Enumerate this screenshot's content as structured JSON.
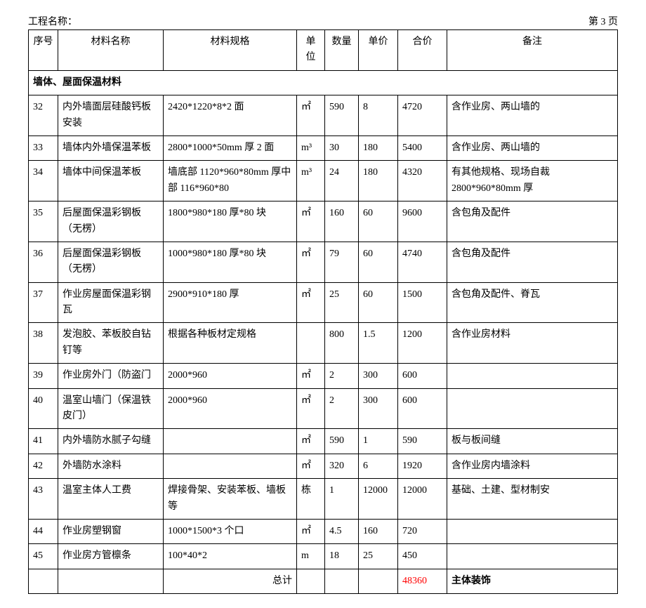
{
  "header": {
    "project_label": "工程名称：",
    "page_label": "第 3 页"
  },
  "table": {
    "columns": [
      "序号",
      "材料名称",
      "材料规格",
      "单位",
      "数量",
      "单价",
      "合价",
      "备注"
    ],
    "section_title": "墙体、屋面保温材料",
    "rows": [
      {
        "seq": "32",
        "name": "内外墙面层硅酸钙板安装",
        "spec": "2420*1220*8*2 面",
        "unit": "㎡",
        "qty": "590",
        "price": "8",
        "total": "4720",
        "note": "含作业房、两山墙的"
      },
      {
        "seq": "33",
        "name": "墙体内外墙保温苯板",
        "spec": "2800*1000*50mm 厚 2 面",
        "unit": "m³",
        "qty": "30",
        "price": "180",
        "total": "5400",
        "note": "含作业房、两山墙的"
      },
      {
        "seq": "34",
        "name": "墙体中间保温苯板",
        "spec": "墙底部 1120*960*80mm 厚中部 116*960*80",
        "unit": "m³",
        "qty": "24",
        "price": "180",
        "total": "4320",
        "note": "有其他规格、现场自裁2800*960*80mm 厚"
      },
      {
        "seq": "35",
        "name": "后屋面保温彩钢板（无楞）",
        "spec": "1800*980*180 厚*80 块",
        "unit": "㎡",
        "qty": "160",
        "price": "60",
        "total": "9600",
        "note": "含包角及配件"
      },
      {
        "seq": "36",
        "name": "后屋面保温彩钢板（无楞）",
        "spec": "1000*980*180 厚*80 块",
        "unit": "㎡",
        "qty": "79",
        "price": "60",
        "total": "4740",
        "note": "含包角及配件"
      },
      {
        "seq": "37",
        "name": "作业房屋面保温彩钢瓦",
        "spec": "2900*910*180 厚",
        "unit": "㎡",
        "qty": "25",
        "price": "60",
        "total": "1500",
        "note": "含包角及配件、脊瓦"
      },
      {
        "seq": "38",
        "name": "发泡胶、苯板胶自钻钉等",
        "spec": "根据各种板材定规格",
        "unit": "",
        "qty": "800",
        "price": "1.5",
        "total": "1200",
        "note": "含作业房材料"
      },
      {
        "seq": "39",
        "name": "作业房外门（防盗门",
        "spec": "2000*960",
        "unit": "㎡",
        "qty": "2",
        "price": "300",
        "total": "600",
        "note": ""
      },
      {
        "seq": "40",
        "name": "温室山墙门（保温铁皮门）",
        "spec": "2000*960",
        "unit": "㎡",
        "qty": "2",
        "price": "300",
        "total": "600",
        "note": ""
      },
      {
        "seq": "41",
        "name": "内外墙防水腻子勾缝",
        "spec": "",
        "unit": "㎡",
        "qty": "590",
        "price": "1",
        "total": "590",
        "note": "板与板间缝"
      },
      {
        "seq": "42",
        "name": "外墙防水涂料",
        "spec": "",
        "unit": "㎡",
        "qty": "320",
        "price": "6",
        "total": "1920",
        "note": "含作业房内墙涂料"
      },
      {
        "seq": "43",
        "name": "温室主体人工费",
        "spec": "焊接骨架、安装苯板、墙板等",
        "unit": "栋",
        "qty": "1",
        "price": "12000",
        "total": "12000",
        "note": "基础、土建、型材制安"
      },
      {
        "seq": "44",
        "name": "作业房塑钢窗",
        "spec": "1000*1500*3 个口",
        "unit": "㎡",
        "qty": "4.5",
        "price": "160",
        "total": "720",
        "note": ""
      },
      {
        "seq": "45",
        "name": "作业房方管檩条",
        "spec": "100*40*2",
        "unit": "m",
        "qty": "18",
        "price": "25",
        "total": "450",
        "note": ""
      }
    ],
    "footer": {
      "label": "总计",
      "total": "48360",
      "note": "主体装饰"
    }
  }
}
